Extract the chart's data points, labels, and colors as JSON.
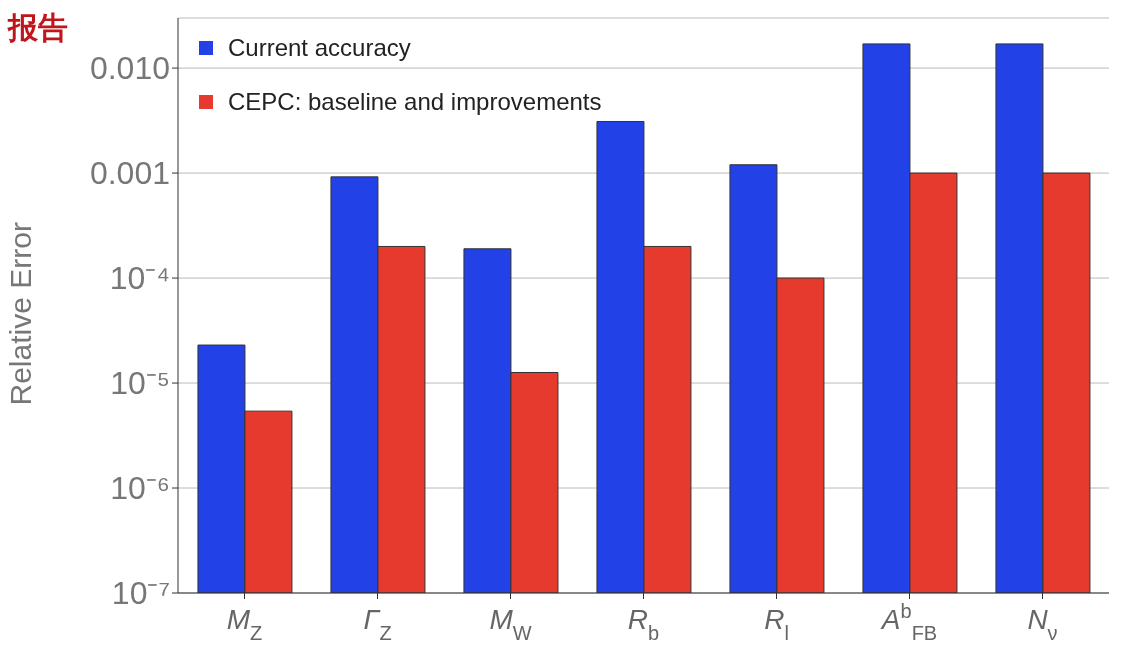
{
  "chart_data": {
    "type": "bar",
    "ylabel": "Relative Error",
    "annotations": [
      "报告"
    ],
    "categories": [
      "M$_{Z}$",
      "Γ$_{Z}$",
      "M$_{W}$",
      "R$_{b}$",
      "R$_{l}$",
      "A$^{b}$$_{FB}$",
      "N$_{ν}$"
    ],
    "series": [
      {
        "name": "Current accuracy",
        "color": "#2241e6",
        "values": [
          2.3e-05,
          0.00092,
          0.00019,
          0.0031,
          0.0012,
          0.017,
          0.017
        ]
      },
      {
        "name": "CEPC: baseline and improvements",
        "color": "#e63a2e",
        "values": [
          5.4e-06,
          0.0002,
          1.26e-05,
          0.0002,
          0.0001,
          0.001,
          0.001
        ]
      }
    ],
    "log": "y",
    "ylim": [
      1e-07,
      0.03
    ],
    "yticks": [
      {
        "value": 1e-07,
        "label": "10⁻⁷"
      },
      {
        "value": 1e-06,
        "label": "10⁻⁶"
      },
      {
        "value": 1e-05,
        "label": "10⁻⁵"
      },
      {
        "value": 0.0001,
        "label": "10⁻⁴"
      },
      {
        "value": 0.001,
        "label": "0.001"
      },
      {
        "value": 0.01,
        "label": "0.010"
      }
    ],
    "grid": "y",
    "legend": "top left",
    "marker": "square"
  }
}
